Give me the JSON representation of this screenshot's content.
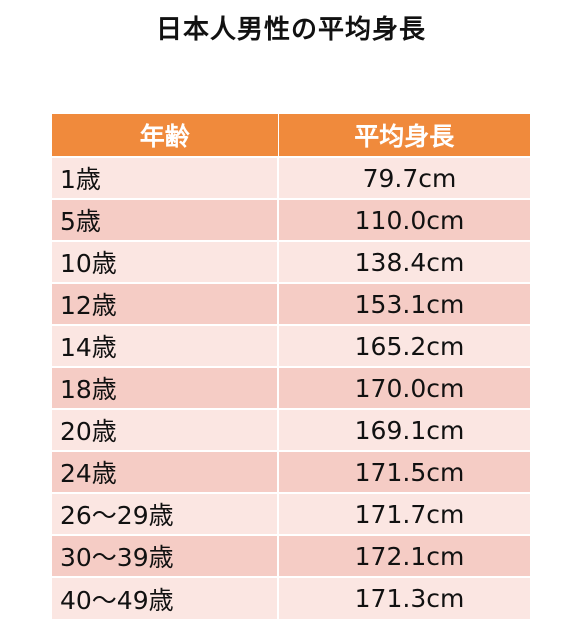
{
  "title": "日本人男性の平均身長",
  "table": {
    "headers": {
      "age": "年齢",
      "height": "平均身長"
    },
    "rows": [
      {
        "age": "1歳",
        "height": "79.7cm"
      },
      {
        "age": "5歳",
        "height": "110.0cm"
      },
      {
        "age": "10歳",
        "height": "138.4cm"
      },
      {
        "age": "12歳",
        "height": "153.1cm"
      },
      {
        "age": "14歳",
        "height": "165.2cm"
      },
      {
        "age": "18歳",
        "height": "170.0cm"
      },
      {
        "age": "20歳",
        "height": "169.1cm"
      },
      {
        "age": "24歳",
        "height": "171.5cm"
      },
      {
        "age": "26～29歳",
        "height": "171.7cm"
      },
      {
        "age": "30～39歳",
        "height": "172.1cm"
      },
      {
        "age": "40～49歳",
        "height": "171.3cm"
      }
    ]
  },
  "colors": {
    "header_bg": "#f08a3c",
    "row_light": "#fbe6e2",
    "row_dark": "#f5ccc5"
  }
}
